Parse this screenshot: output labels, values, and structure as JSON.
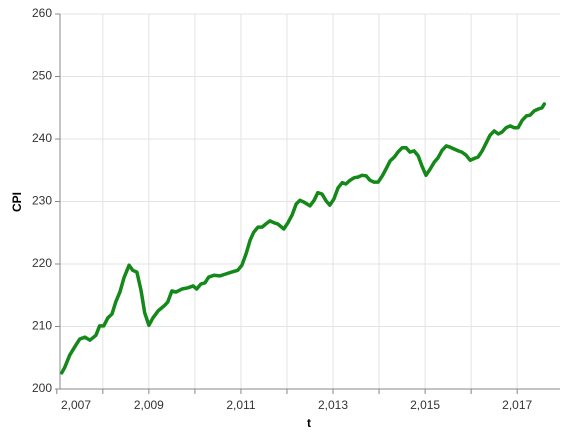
{
  "chart_data": {
    "type": "line",
    "xlabel": "t",
    "ylabel": "CPI",
    "x": [
      2007.11,
      2007.17,
      2007.28,
      2007.41,
      2007.5,
      2007.61,
      2007.72,
      2007.85,
      2007.93,
      2008.02,
      2008.11,
      2008.2,
      2008.28,
      2008.37,
      2008.46,
      2008.57,
      2008.65,
      2008.74,
      2008.83,
      2008.91,
      2009.0,
      2009.09,
      2009.2,
      2009.33,
      2009.41,
      2009.5,
      2009.59,
      2009.72,
      2009.85,
      2009.96,
      2010.04,
      2010.13,
      2010.22,
      2010.3,
      2010.41,
      2010.54,
      2010.67,
      2010.8,
      2010.93,
      2011.02,
      2011.11,
      2011.2,
      2011.28,
      2011.37,
      2011.46,
      2011.54,
      2011.63,
      2011.72,
      2011.8,
      2011.93,
      2012.02,
      2012.11,
      2012.2,
      2012.28,
      2012.37,
      2012.5,
      2012.59,
      2012.67,
      2012.76,
      2012.85,
      2012.93,
      2013.02,
      2013.11,
      2013.2,
      2013.28,
      2013.37,
      2013.46,
      2013.54,
      2013.63,
      2013.72,
      2013.8,
      2013.89,
      2013.98,
      2014.07,
      2014.15,
      2014.24,
      2014.33,
      2014.41,
      2014.5,
      2014.59,
      2014.67,
      2014.76,
      2014.85,
      2014.93,
      2015.02,
      2015.11,
      2015.2,
      2015.28,
      2015.37,
      2015.46,
      2015.54,
      2015.63,
      2015.72,
      2015.8,
      2015.89,
      2015.98,
      2016.07,
      2016.15,
      2016.24,
      2016.33,
      2016.41,
      2016.5,
      2016.59,
      2016.67,
      2016.76,
      2016.85,
      2016.93,
      2017.02,
      2017.11,
      2017.2,
      2017.28,
      2017.37,
      2017.46,
      2017.54,
      2017.59
    ],
    "series": [
      {
        "name": "CPI",
        "color": "#15881a",
        "values": [
          202.6,
          203.4,
          205.4,
          207.0,
          208.0,
          208.3,
          207.8,
          208.6,
          210.1,
          210.1,
          211.4,
          212.0,
          213.9,
          215.5,
          217.8,
          219.8,
          219.0,
          218.7,
          215.8,
          212.2,
          210.2,
          211.4,
          212.5,
          213.3,
          213.9,
          215.7,
          215.5,
          216.0,
          216.2,
          216.5,
          216.0,
          216.8,
          217.0,
          217.9,
          218.2,
          218.1,
          218.4,
          218.7,
          219.0,
          219.8,
          221.6,
          223.8,
          225.1,
          225.9,
          225.9,
          226.4,
          226.9,
          226.6,
          226.4,
          225.6,
          226.6,
          227.8,
          229.6,
          230.2,
          229.9,
          229.3,
          230.2,
          231.4,
          231.2,
          230.1,
          229.4,
          230.4,
          232.2,
          233.0,
          232.8,
          233.4,
          233.8,
          233.9,
          234.2,
          234.1,
          233.4,
          233.1,
          233.1,
          234.1,
          235.2,
          236.5,
          237.1,
          237.9,
          238.6,
          238.6,
          237.9,
          238.1,
          237.3,
          235.7,
          234.2,
          235.2,
          236.3,
          237.0,
          238.2,
          238.9,
          238.7,
          238.4,
          238.1,
          237.9,
          237.4,
          236.6,
          236.9,
          237.1,
          238.1,
          239.4,
          240.6,
          241.3,
          240.8,
          241.1,
          241.8,
          242.1,
          241.8,
          241.8,
          243.0,
          243.7,
          243.8,
          244.5,
          244.8,
          245.0,
          245.6
        ]
      }
    ],
    "xlim": [
      2007.07,
      2017.93
    ],
    "ylim": [
      200,
      260
    ],
    "xticks": [
      {
        "value": 2007,
        "label": "2,007"
      },
      {
        "value": 2009,
        "label": "2,009"
      },
      {
        "value": 2011,
        "label": "2,011"
      },
      {
        "value": 2013,
        "label": "2,013"
      },
      {
        "value": 2015,
        "label": "2,015"
      },
      {
        "value": 2017,
        "label": "2,017"
      }
    ],
    "xminorticks": [
      2008,
      2010,
      2012,
      2014,
      2016
    ],
    "yticks": [
      200,
      210,
      220,
      230,
      240,
      250,
      260
    ],
    "grid": true
  }
}
